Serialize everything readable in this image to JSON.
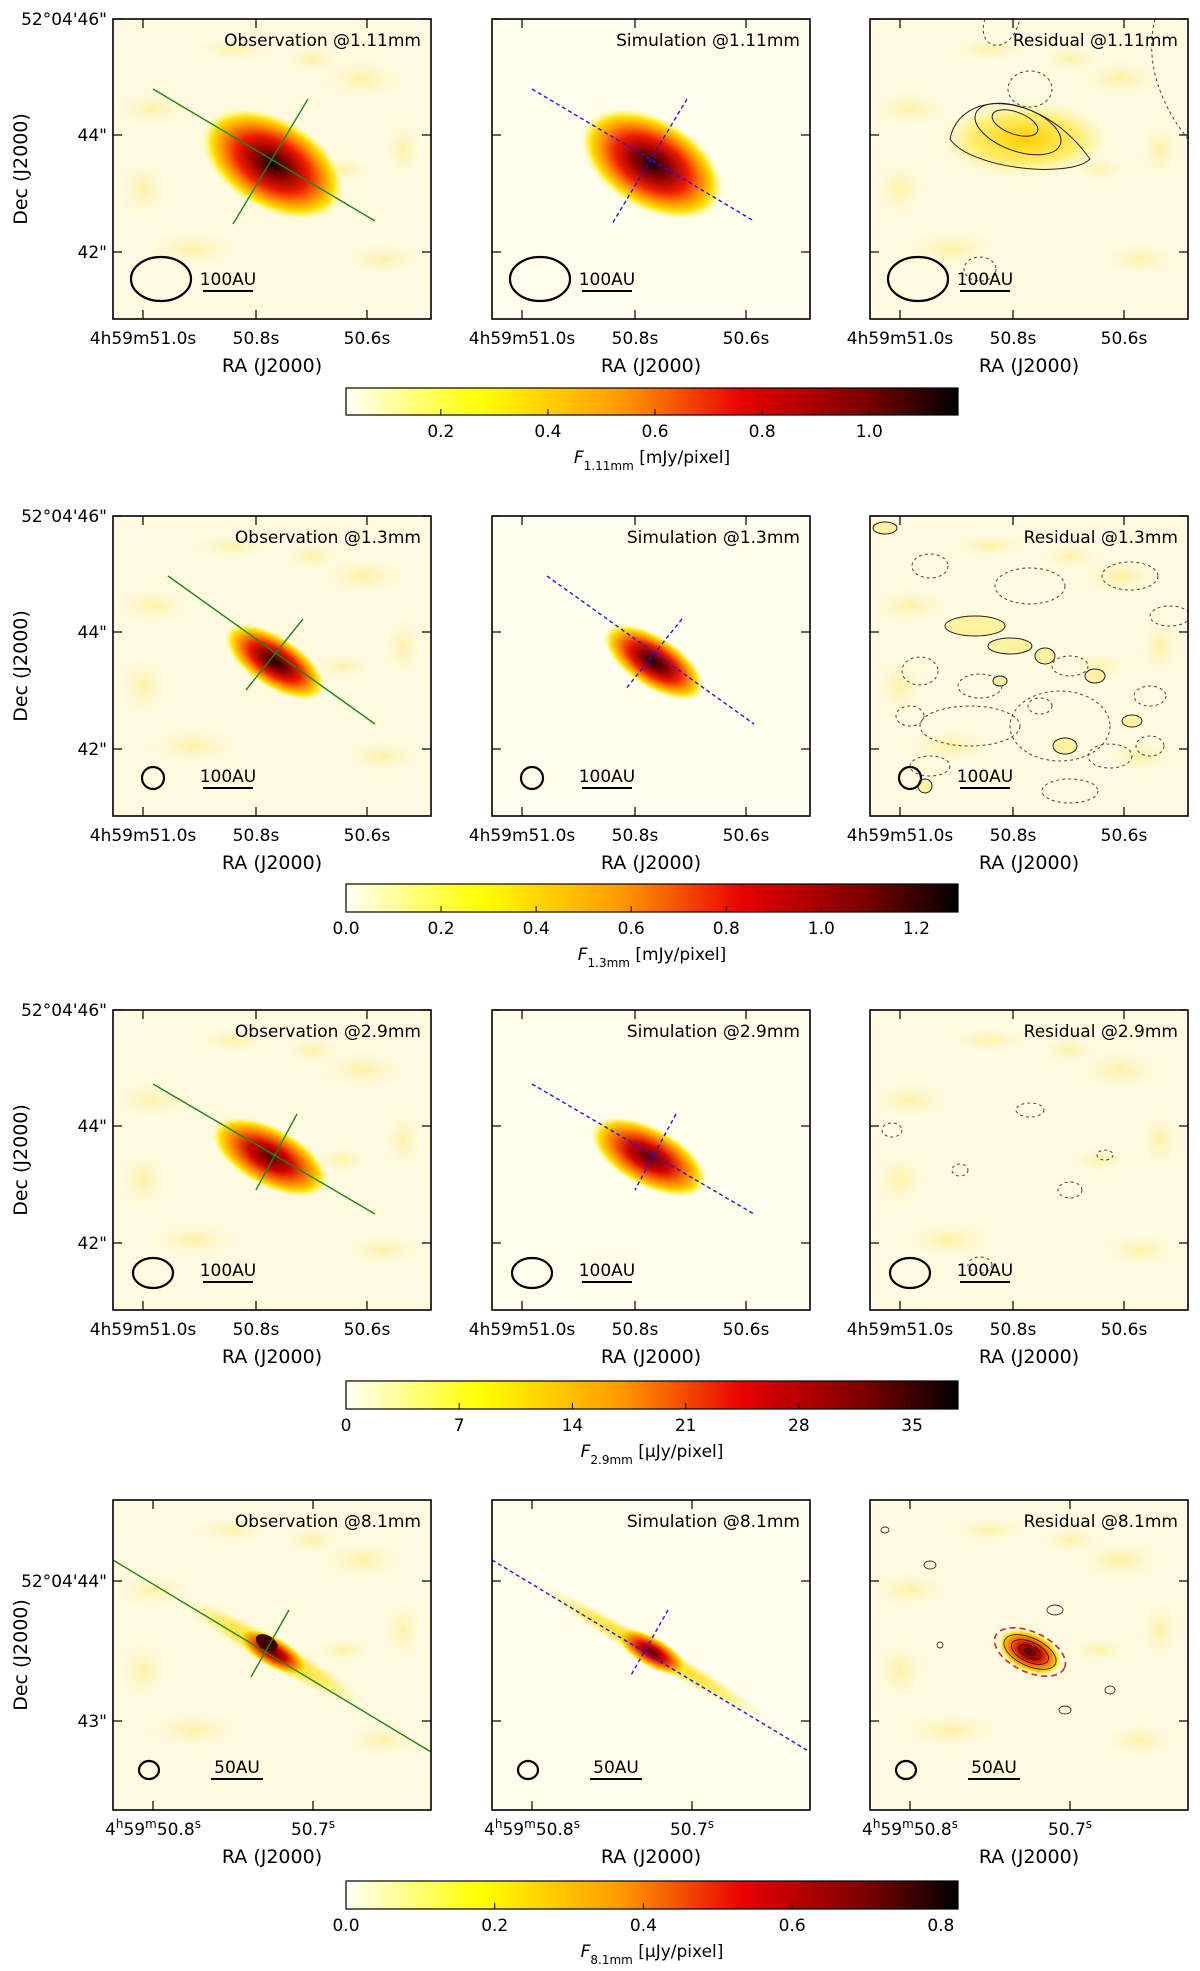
{
  "colorscale": [
    "#fffff6",
    "#ffff00",
    "#ff8c00",
    "#e00000",
    "#6a0000",
    "#000000"
  ],
  "rows": [
    {
      "panels": [
        {
          "title": "Observation @1.11mm",
          "scalebar": "100AU",
          "kind": "obs"
        },
        {
          "title": "Simulation @1.11mm",
          "scalebar": "100AU",
          "kind": "sim"
        },
        {
          "title": "Residual @1.11mm",
          "scalebar": "100AU",
          "kind": "res"
        }
      ],
      "ra_ticks": [
        "4h59m51.0s",
        "50.8s",
        "50.6s"
      ],
      "dec_ticks": [
        "52°04'46\"",
        "44\"",
        "42\""
      ],
      "xlabel": "RA (J2000)",
      "ylabel": "Dec (J2000)",
      "colorbar": {
        "ticks": [
          "0.2",
          "0.4",
          "0.6",
          "0.8",
          "1.0"
        ],
        "label_main": "F",
        "label_sub": "1.11mm",
        "label_unit": " [mJy/pixel]"
      }
    },
    {
      "panels": [
        {
          "title": "Observation @1.3mm",
          "scalebar": "100AU",
          "kind": "obs"
        },
        {
          "title": "Simulation @1.3mm",
          "scalebar": "100AU",
          "kind": "sim"
        },
        {
          "title": "Residual @1.3mm",
          "scalebar": "100AU",
          "kind": "res"
        }
      ],
      "ra_ticks": [
        "4h59m51.0s",
        "50.8s",
        "50.6s"
      ],
      "dec_ticks": [
        "52°04'46\"",
        "44\"",
        "42\""
      ],
      "xlabel": "RA (J2000)",
      "ylabel": "Dec (J2000)",
      "colorbar": {
        "ticks": [
          "0.0",
          "0.2",
          "0.4",
          "0.6",
          "0.8",
          "1.0",
          "1.2"
        ],
        "label_main": "F",
        "label_sub": "1.3mm",
        "label_unit": " [mJy/pixel]"
      }
    },
    {
      "panels": [
        {
          "title": "Observation @2.9mm",
          "scalebar": "100AU",
          "kind": "obs"
        },
        {
          "title": "Simulation @2.9mm",
          "scalebar": "100AU",
          "kind": "sim"
        },
        {
          "title": "Residual @2.9mm",
          "scalebar": "100AU",
          "kind": "res"
        }
      ],
      "ra_ticks": [
        "4h59m51.0s",
        "50.8s",
        "50.6s"
      ],
      "dec_ticks": [
        "52°04'46\"",
        "44\"",
        "42\""
      ],
      "xlabel": "RA (J2000)",
      "ylabel": "Dec (J2000)",
      "colorbar": {
        "ticks": [
          "0",
          "7",
          "14",
          "21",
          "28",
          "35"
        ],
        "label_main": "F",
        "label_sub": "2.9mm",
        "label_unit": " [μJy/pixel]"
      }
    },
    {
      "panels": [
        {
          "title": "Observation @8.1mm",
          "scalebar": "50AU",
          "kind": "obs"
        },
        {
          "title": "Simulation @8.1mm",
          "scalebar": "50AU",
          "kind": "sim"
        },
        {
          "title": "Residual @8.1mm",
          "scalebar": "50AU",
          "kind": "res"
        }
      ],
      "ra_ticks_main": [
        "4",
        "59",
        "50.8"
      ],
      "ra_ticks_sup": [
        "h",
        "m",
        "s"
      ],
      "ra_tick2": "50.7",
      "ra_tick2_sup": "s",
      "dec_ticks": [
        "52°04'44\"",
        "43\""
      ],
      "xlabel": "RA (J2000)",
      "ylabel": "Dec (J2000)",
      "colorbar": {
        "ticks": [
          "0.0",
          "0.2",
          "0.4",
          "0.6",
          "0.8"
        ],
        "label_main": "F",
        "label_sub": "8.1mm",
        "label_unit": " [μJy/pixel]"
      }
    }
  ]
}
